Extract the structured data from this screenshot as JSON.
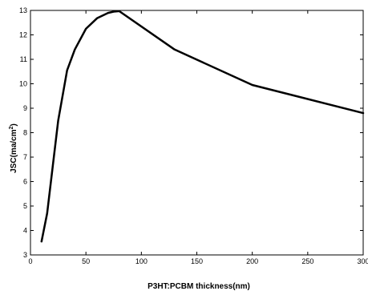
{
  "chart_data": {
    "type": "line",
    "title": "",
    "xlabel": "P3HT:PCBM thickness(nm)",
    "ylabel_main": "JSC(ma/cm",
    "ylabel_sup": "2",
    "ylabel_end": ")",
    "xlim": [
      0,
      300
    ],
    "ylim": [
      3,
      13
    ],
    "xticks": [
      0,
      50,
      100,
      150,
      200,
      250,
      300
    ],
    "yticks": [
      3,
      4,
      5,
      6,
      7,
      8,
      9,
      10,
      11,
      12,
      13
    ],
    "grid": false,
    "series": [
      {
        "color": "#000000",
        "x": [
          10,
          15,
          20,
          25,
          33,
          40,
          50,
          60,
          70,
          75,
          80,
          130,
          200,
          300
        ],
        "y": [
          3.55,
          4.7,
          6.6,
          8.5,
          10.55,
          11.4,
          12.25,
          12.68,
          12.9,
          12.95,
          12.97,
          11.4,
          9.95,
          8.8
        ]
      }
    ]
  }
}
